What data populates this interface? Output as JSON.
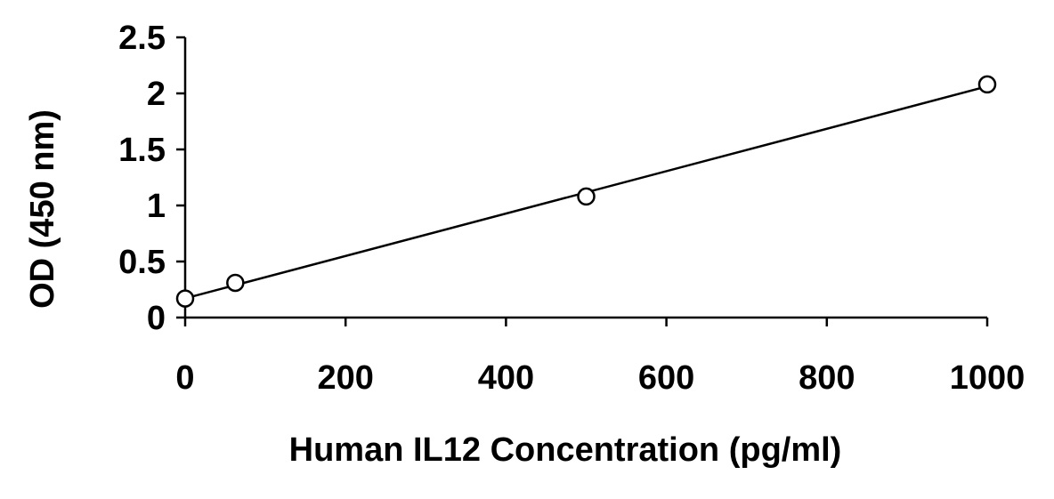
{
  "chart_data": {
    "type": "scatter",
    "title": "",
    "xlabel": "Human IL12 Concentration (pg/ml)",
    "ylabel": "OD (450 nm)",
    "xlim": [
      0,
      1000
    ],
    "ylim": [
      0,
      2.5
    ],
    "xticks": [
      "0",
      "200",
      "400",
      "600",
      "800",
      "1000"
    ],
    "yticks": [
      "0",
      "0.5",
      "1",
      "1.5",
      "2",
      "2.5"
    ],
    "grid": false,
    "legend": "none",
    "series": [
      {
        "marker": "open-circle",
        "trendline": "linear",
        "x": [
          0,
          62.5,
          500,
          1000
        ],
        "y": [
          0.17,
          0.31,
          1.08,
          2.08
        ]
      }
    ],
    "colors": {
      "line": "#000000",
      "marker_fill": "#ffffff"
    }
  }
}
